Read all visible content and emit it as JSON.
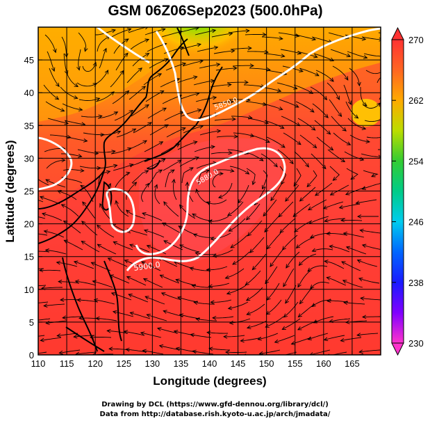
{
  "title": "GSM 06Z06Sep2023 (500.0hPa)",
  "x_axis": {
    "label": "Longitude (degrees)",
    "ticks": [
      "110",
      "115",
      "120",
      "125",
      "130",
      "135",
      "140",
      "145",
      "150",
      "155",
      "160",
      "165"
    ],
    "range": [
      110,
      170
    ]
  },
  "y_axis": {
    "label": "Latitude  (degrees)",
    "ticks": [
      "0",
      "5",
      "10",
      "15",
      "20",
      "25",
      "30",
      "35",
      "40",
      "45"
    ],
    "range": [
      0,
      50
    ]
  },
  "colorbar": {
    "ticks": [
      "230",
      "238",
      "246",
      "254",
      "262",
      "270"
    ],
    "range": [
      230,
      270
    ],
    "colors": [
      "#ff33cc",
      "#8000ff",
      "#1a1aff",
      "#0099ff",
      "#00ccaa",
      "#33cc33",
      "#99dd00",
      "#ffcc00",
      "#ff9900",
      "#ff5522",
      "#ff3333"
    ]
  },
  "contours": [
    {
      "label": "5900.0",
      "color": "#ffffff"
    },
    {
      "label": "5880.0",
      "color": "#ffffff"
    },
    {
      "label": "5850.0",
      "color": "#ffffff"
    }
  ],
  "credits": [
    "Drawing by DCL (https://www.gfd-dennou.org/library/dcl/)",
    "Data from http://database.rish.kyoto-u.ac.jp/arch/jmadata/"
  ]
}
